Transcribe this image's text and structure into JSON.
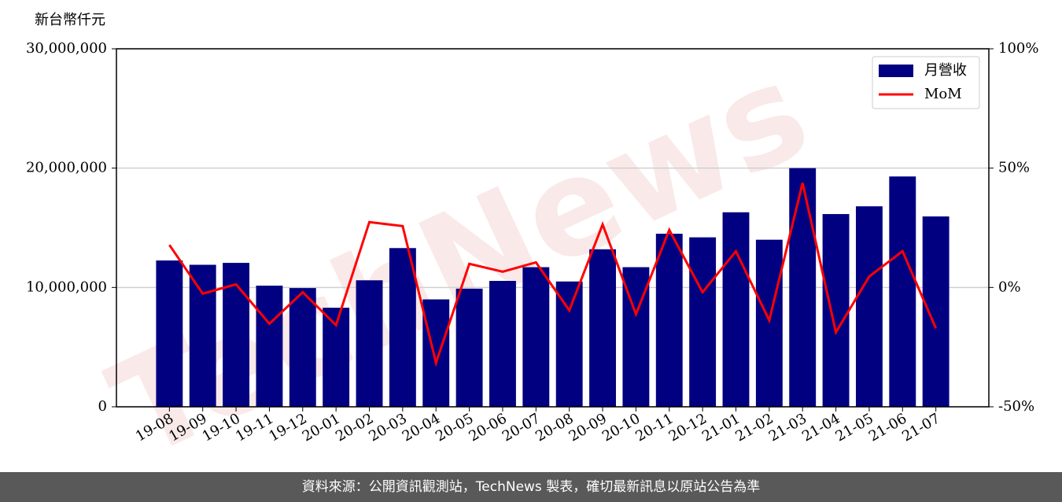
{
  "chart_data": {
    "type": "bar-line",
    "ylabel": "新台幣仟元",
    "watermark": "TechNews",
    "footer": "資料來源：公開資訊觀測站，TechNews 製表，確切最新訊息以原站公告為準",
    "categories": [
      "19-08",
      "19-09",
      "19-10",
      "19-11",
      "19-12",
      "20-01",
      "20-02",
      "20-03",
      "20-04",
      "20-05",
      "20-06",
      "20-07",
      "20-08",
      "20-09",
      "20-10",
      "20-11",
      "20-12",
      "21-01",
      "21-02",
      "21-03",
      "21-04",
      "21-05",
      "21-06",
      "21-07"
    ],
    "series": [
      {
        "name": "月營收",
        "type": "bar",
        "color": "#000080",
        "values": [
          12260000,
          11900000,
          12060000,
          10150000,
          9950000,
          8300000,
          10600000,
          13300000,
          9000000,
          9900000,
          10550000,
          11700000,
          10500000,
          13200000,
          11700000,
          14500000,
          14200000,
          16300000,
          14000000,
          20000000,
          16150000,
          16800000,
          19300000,
          15950000
        ]
      },
      {
        "name": "MoM",
        "type": "line",
        "axis": "y2",
        "color": "#ff0000",
        "values": [
          17.8,
          -2.6,
          1.3,
          -15.2,
          -2.0,
          -15.8,
          27.4,
          25.7,
          -31.6,
          9.9,
          6.6,
          10.5,
          -9.6,
          26.4,
          -11.2,
          24.1,
          -2.0,
          15.2,
          -13.8,
          43.8,
          -18.8,
          4.6,
          15.2,
          -17.1
        ]
      }
    ],
    "ylim": [
      0,
      30000000
    ],
    "yticks": [
      0,
      {
        "value": 10000000,
        "label": "10,000,000"
      },
      {
        "value": 20000000,
        "label": "20,000,000"
      },
      {
        "value": 30000000,
        "label": "30,000,000"
      }
    ],
    "y2lim": [
      -50,
      100
    ],
    "y2ticks": [
      {
        "value": -50,
        "label": "-50%"
      },
      {
        "value": 0,
        "label": "0%"
      },
      {
        "value": 50,
        "label": "50%"
      },
      {
        "value": 100,
        "label": "100%"
      }
    ],
    "grid": true,
    "legend": "upper right"
  }
}
